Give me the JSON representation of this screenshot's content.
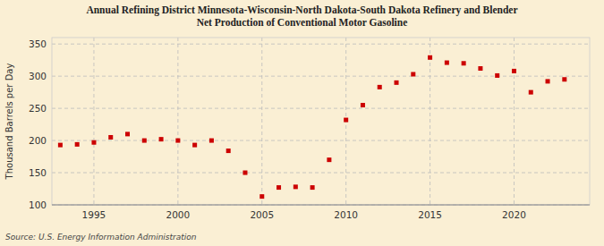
{
  "chart_data": {
    "type": "scatter",
    "title": "Annual Refining District Minnesota-Wisconsin-North Dakota-South Dakota Refinery and Blender\nNet Production of Conventional Motor Gasoline",
    "y_label": "Thousand Barrels per Day",
    "source": "Source: U.S. Energy Information Administration",
    "x": [
      1993,
      1994,
      1995,
      1996,
      1997,
      1998,
      1999,
      2000,
      2001,
      2002,
      2003,
      2004,
      2005,
      2006,
      2007,
      2008,
      2009,
      2010,
      2011,
      2012,
      2013,
      2014,
      2015,
      2016,
      2017,
      2018,
      2019,
      2020,
      2021,
      2022,
      2023
    ],
    "values": [
      193,
      194,
      197,
      205,
      210,
      200,
      202,
      200,
      193,
      200,
      184,
      150,
      113,
      127,
      128,
      127,
      170,
      232,
      255,
      283,
      290,
      303,
      329,
      321,
      320,
      312,
      301,
      308,
      275,
      292,
      295
    ],
    "color": "#cc0000",
    "marker": "square",
    "xlim": [
      1992.5,
      2024.5
    ],
    "xticks": [
      1995,
      2000,
      2005,
      2010,
      2015,
      2020
    ],
    "ylim": [
      100,
      360
    ],
    "yticks": [
      100,
      150,
      200,
      250,
      300,
      350
    ],
    "grid": true
  }
}
